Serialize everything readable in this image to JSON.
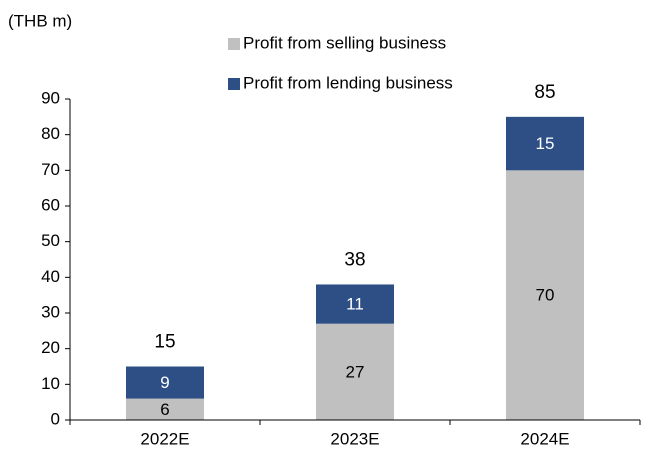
{
  "chart_data": {
    "type": "stacked_bar",
    "unit_label": "(THB m)",
    "categories": [
      "2022E",
      "2023E",
      "2024E"
    ],
    "series": [
      {
        "name": "Profit from selling business",
        "color": "#c0c0c0",
        "label_color": "#000000",
        "values": [
          6,
          27,
          70
        ]
      },
      {
        "name": "Profit from lending business",
        "color": "#2e4f86",
        "label_color": "#ffffff",
        "values": [
          9,
          11,
          15
        ]
      }
    ],
    "totals": [
      15,
      38,
      85
    ],
    "ylim": [
      0,
      90
    ],
    "yticks": [
      0,
      10,
      20,
      30,
      40,
      50,
      60,
      70,
      80,
      90
    ]
  }
}
